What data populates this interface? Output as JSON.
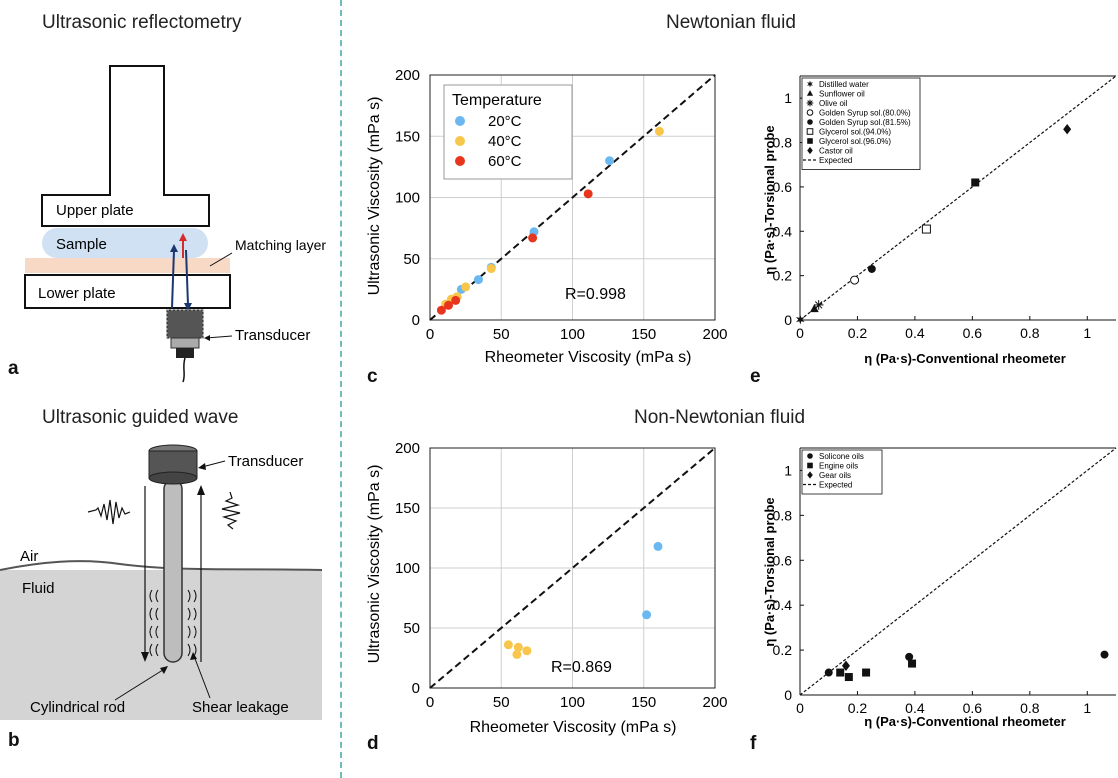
{
  "headings": {
    "reflectometry": "Ultrasonic reflectometry",
    "guided_wave": "Ultrasonic guided wave",
    "newtonian": "Newtonian fluid",
    "non_newtonian": "Non-Newtonian fluid"
  },
  "panel_letters": {
    "a": "a",
    "b": "b",
    "c": "c",
    "d": "d",
    "e": "e",
    "f": "f"
  },
  "diagram_a": {
    "upper_plate": "Upper plate",
    "sample": "Sample",
    "matching_layer": "Matching layer",
    "lower_plate": "Lower plate",
    "transducer": "Transducer"
  },
  "diagram_b": {
    "transducer": "Transducer",
    "air": "Air",
    "fluid": "Fluid",
    "rod": "Cylindrical rod",
    "shear": "Shear leakage"
  },
  "colors": {
    "c20": "#6bb8f0",
    "c40": "#f8c64a",
    "c60": "#e8361e",
    "divider": "#6fbdb6"
  },
  "chart_data": [
    {
      "id": "c",
      "type": "scatter",
      "xlabel": "Rheometer Viscosity (mPa s)",
      "ylabel": "Ultrasonic Viscosity (mPa s)",
      "xlim": [
        0,
        200
      ],
      "ylim": [
        0,
        200
      ],
      "xticks": [
        0,
        50,
        100,
        150,
        200
      ],
      "yticks": [
        0,
        50,
        100,
        150,
        200
      ],
      "grid": true,
      "annotation": "R=0.998",
      "legend": {
        "title": "Temperature",
        "position": "top-left"
      },
      "series": [
        {
          "name": "20°C",
          "color": "#6bb8f0",
          "points": [
            [
              22,
              25
            ],
            [
              34,
              33
            ],
            [
              43,
              43
            ],
            [
              73,
              72
            ],
            [
              126,
              130
            ]
          ]
        },
        {
          "name": "40°C",
          "color": "#f8c64a",
          "points": [
            [
              11,
              13
            ],
            [
              15,
              17
            ],
            [
              19,
              19
            ],
            [
              25,
              27
            ],
            [
              43,
              42
            ],
            [
              161,
              154
            ]
          ]
        },
        {
          "name": "60°C",
          "color": "#e8361e",
          "points": [
            [
              8,
              8
            ],
            [
              13,
              12
            ],
            [
              18,
              16
            ],
            [
              72,
              67
            ],
            [
              111,
              103
            ]
          ]
        }
      ]
    },
    {
      "id": "d",
      "type": "scatter",
      "xlabel": "Rheometer Viscosity (mPa s)",
      "ylabel": "Ultrasonic Viscosity (mPa s)",
      "xlim": [
        0,
        200
      ],
      "ylim": [
        0,
        200
      ],
      "xticks": [
        0,
        50,
        100,
        150,
        200
      ],
      "yticks": [
        0,
        50,
        100,
        150,
        200
      ],
      "grid": true,
      "annotation": "R=0.869",
      "series": [
        {
          "color": "#6bb8f0",
          "points": [
            [
              152,
              61
            ],
            [
              160,
              118
            ]
          ]
        },
        {
          "color": "#f8c64a",
          "points": [
            [
              55,
              36
            ],
            [
              61,
              28
            ],
            [
              62,
              34
            ],
            [
              68,
              31
            ]
          ]
        }
      ]
    },
    {
      "id": "e",
      "type": "scatter",
      "xlabel": "η (Pa·s)-Conventional rheometer",
      "ylabel": "η (Pa·s)-Torsional probe",
      "xlim": [
        0,
        1.1
      ],
      "ylim": [
        0,
        1.1
      ],
      "xticks": [
        0,
        0.2,
        0.4,
        0.6,
        0.8,
        1
      ],
      "yticks": [
        0,
        0.2,
        0.4,
        0.6,
        0.8,
        1
      ],
      "xticklabels": [
        "0",
        "0.2",
        "0.4",
        "0.6",
        "0.8",
        "1"
      ],
      "yticklabels": [
        "0",
        "0.2",
        "0.4",
        "0.6",
        "0.8",
        "1"
      ],
      "grid": false,
      "legend": {
        "position": "top-left"
      },
      "series": [
        {
          "name": "Distilled water",
          "marker": "star6",
          "points": [
            [
              0.001,
              0.002
            ]
          ]
        },
        {
          "name": "Sunflower oil",
          "marker": "triangle",
          "points": [
            [
              0.05,
              0.05
            ]
          ]
        },
        {
          "name": "Olive oil",
          "marker": "asterisk",
          "points": [
            [
              0.065,
              0.068
            ]
          ]
        },
        {
          "name": "Golden Syrup sol.(80.0%)",
          "marker": "circle-open",
          "points": [
            [
              0.19,
              0.18
            ]
          ]
        },
        {
          "name": "Golden Syrup sol.(81.5%)",
          "marker": "circle",
          "points": [
            [
              0.25,
              0.23
            ]
          ]
        },
        {
          "name": "Glycerol sol.(94.0%)",
          "marker": "square-open",
          "points": [
            [
              0.44,
              0.41
            ]
          ]
        },
        {
          "name": "Glycerol sol.(96.0%)",
          "marker": "square",
          "points": [
            [
              0.61,
              0.62
            ]
          ]
        },
        {
          "name": "Castor oil",
          "marker": "diamond",
          "points": [
            [
              0.93,
              0.86
            ]
          ]
        },
        {
          "name": "Expected",
          "marker": "line"
        }
      ]
    },
    {
      "id": "f",
      "type": "scatter",
      "xlabel": "η (Pa·s)-Conventional rheometer",
      "ylabel": "η (Pa·s)-Torsional probe",
      "xlim": [
        0,
        1.1
      ],
      "ylim": [
        0,
        1.1
      ],
      "xticks": [
        0,
        0.2,
        0.4,
        0.6,
        0.8,
        1
      ],
      "yticks": [
        0,
        0.2,
        0.4,
        0.6,
        0.8,
        1
      ],
      "xticklabels": [
        "0",
        "0.2",
        "0.4",
        "0.6",
        "0.8",
        "1"
      ],
      "yticklabels": [
        "0",
        "0.2",
        "0.4",
        "0.6",
        "0.8",
        "1"
      ],
      "grid": false,
      "legend": {
        "position": "top-left"
      },
      "series": [
        {
          "name": "Solicone oils",
          "marker": "circle",
          "points": [
            [
              0.1,
              0.1
            ],
            [
              0.38,
              0.17
            ],
            [
              1.06,
              0.18
            ]
          ]
        },
        {
          "name": "Engine oils",
          "marker": "square",
          "points": [
            [
              0.14,
              0.1
            ],
            [
              0.17,
              0.08
            ],
            [
              0.23,
              0.1
            ],
            [
              0.39,
              0.14
            ]
          ]
        },
        {
          "name": "Gear oils",
          "marker": "diamond",
          "points": [
            [
              0.16,
              0.13
            ]
          ]
        },
        {
          "name": "Expected",
          "marker": "line"
        }
      ]
    }
  ]
}
